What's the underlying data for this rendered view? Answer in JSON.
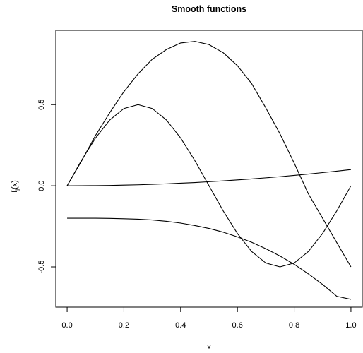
{
  "chart_data": {
    "type": "line",
    "title": "Smooth functions",
    "xlabel": "x",
    "ylabel_main": "f",
    "ylabel_sub": "j",
    "ylabel_tail": "(x)",
    "xlim": [
      -0.04,
      1.04
    ],
    "ylim": [
      -0.748,
      0.958
    ],
    "x_ticks": [
      0.0,
      0.2,
      0.4,
      0.6,
      0.8,
      1.0
    ],
    "x_tick_labels": [
      "0.0",
      "0.2",
      "0.4",
      "0.6",
      "0.8",
      "1.0"
    ],
    "y_ticks": [
      -0.5,
      0.0,
      0.5
    ],
    "y_tick_labels": [
      "-0.5",
      "0.0",
      "0.5"
    ],
    "grid": false,
    "legend": "none",
    "line_color": "#000000",
    "x": [
      0,
      0.05,
      0.1,
      0.15,
      0.2,
      0.25,
      0.3,
      0.35,
      0.4,
      0.45,
      0.5,
      0.55,
      0.6,
      0.65,
      0.7,
      0.75,
      0.8,
      0.85,
      0.9,
      0.95,
      1.0
    ],
    "series": [
      {
        "values": [
          0,
          0.15,
          0.31,
          0.45,
          0.58,
          0.69,
          0.78,
          0.84,
          0.88,
          0.89,
          0.87,
          0.82,
          0.74,
          0.63,
          0.48,
          0.32,
          0.14,
          -0.05,
          -0.2,
          -0.35,
          -0.5
        ]
      },
      {
        "values": [
          0,
          0.155,
          0.294,
          0.405,
          0.476,
          0.5,
          0.476,
          0.405,
          0.294,
          0.155,
          0,
          -0.155,
          -0.294,
          -0.405,
          -0.476,
          -0.5,
          -0.476,
          -0.405,
          -0.294,
          -0.155,
          0
        ]
      },
      {
        "values": [
          0,
          0.0003,
          0.001,
          0.002,
          0.004,
          0.006,
          0.009,
          0.012,
          0.016,
          0.02,
          0.025,
          0.03,
          0.036,
          0.042,
          0.049,
          0.056,
          0.064,
          0.072,
          0.081,
          0.09,
          0.1
        ]
      },
      {
        "values": [
          -0.2,
          -0.2,
          -0.2,
          -0.201,
          -0.203,
          -0.206,
          -0.211,
          -0.219,
          -0.23,
          -0.245,
          -0.263,
          -0.286,
          -0.315,
          -0.348,
          -0.388,
          -0.433,
          -0.484,
          -0.543,
          -0.608,
          -0.681,
          -0.7
        ]
      }
    ]
  }
}
